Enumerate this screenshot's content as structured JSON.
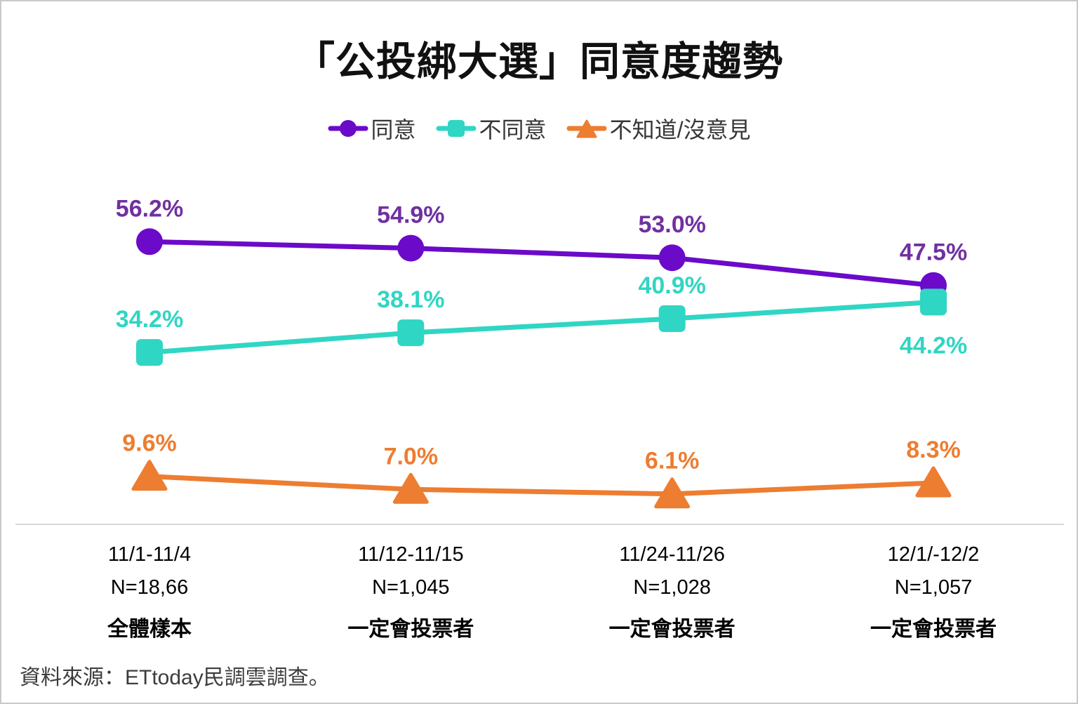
{
  "title": "「公投綁大選」同意度趨勢",
  "legend": [
    {
      "name": "同意",
      "marker": "circle-icon",
      "color": "#6b0ac9",
      "label_color": "#7030a0"
    },
    {
      "name": "不同意",
      "marker": "square-icon",
      "color": "#2fd6c3",
      "label_color": "#2fd6c3"
    },
    {
      "name": "不知道/沒意見",
      "marker": "triangle-icon",
      "color": "#ed7d31",
      "label_color": "#ed7d31"
    }
  ],
  "source_note": "資料來源：ETtoday民調雲調查。",
  "chart_data": {
    "type": "line",
    "title": "「公投綁大選」同意度趨勢",
    "categories": [
      {
        "date": "11/1-11/4",
        "n": "N=18,66",
        "group": "全體樣本"
      },
      {
        "date": "11/12-11/15",
        "n": "N=1,045",
        "group": "一定會投票者"
      },
      {
        "date": "11/24-11/26",
        "n": "N=1,028",
        "group": "一定會投票者"
      },
      {
        "date": "12/1/-12/2",
        "n": "N=1,057",
        "group": "一定會投票者"
      }
    ],
    "series": [
      {
        "name": "同意",
        "marker": "circle",
        "color": "#6b0ac9",
        "label_color": "#7030a0",
        "values": [
          56.2,
          54.9,
          53.0,
          47.5
        ],
        "labels": [
          "56.2%",
          "54.9%",
          "53.0%",
          "47.5%"
        ],
        "label_positions": [
          "above",
          "above",
          "above",
          "above"
        ]
      },
      {
        "name": "不同意",
        "marker": "square",
        "color": "#2fd6c3",
        "label_color": "#2fd6c3",
        "values": [
          34.2,
          38.1,
          40.9,
          44.2
        ],
        "labels": [
          "34.2%",
          "38.1%",
          "40.9%",
          "44.2%"
        ],
        "label_positions": [
          "above",
          "above",
          "above",
          "below"
        ]
      },
      {
        "name": "不知道/沒意見",
        "marker": "triangle",
        "color": "#ed7d31",
        "label_color": "#ed7d31",
        "values": [
          9.6,
          7.0,
          6.1,
          8.3
        ],
        "labels": [
          "9.6%",
          "7.0%",
          "6.1%",
          "8.3%"
        ],
        "label_positions": [
          "above",
          "above",
          "above",
          "above"
        ]
      }
    ],
    "ylim": [
      0,
      100
    ],
    "grid": false,
    "legend_position": "top"
  }
}
